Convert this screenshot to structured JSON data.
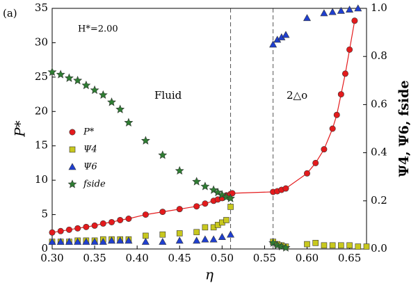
{
  "chart_data": {
    "type": "scatter",
    "panel": "(a)",
    "annotations": [
      "H*=2.00",
      "Fluid",
      "2△o"
    ],
    "xlabel": "η",
    "ylabel": "P*",
    "y2label": "Ψ4, Ψ6, fside",
    "xlim": [
      0.3,
      0.67
    ],
    "ylim": [
      0,
      35
    ],
    "y2lim": [
      0,
      1.0
    ],
    "xticks": [
      {
        "value": 0.3,
        "label": "0.30"
      },
      0.35,
      {
        "value": 0.4,
        "label": "0.40"
      },
      0.45,
      {
        "value": 0.5,
        "label": "0.50"
      },
      0.55,
      {
        "value": 0.6,
        "label": "0.60"
      },
      0.65
    ],
    "yticks": [
      0,
      5,
      10,
      15,
      20,
      25,
      30,
      35
    ],
    "y2ticks": [
      {
        "value": 0,
        "label": "0.0"
      },
      0.2,
      0.4,
      0.6,
      0.8,
      {
        "value": 1,
        "label": "1.0"
      }
    ],
    "vlines": [
      0.51,
      0.56
    ],
    "legend": "center left",
    "series": [
      {
        "name": "P*",
        "color": "#e41a1c",
        "marker": "circle",
        "line": true,
        "axis": "y",
        "x": [
          0.3,
          0.31,
          0.32,
          0.33,
          0.34,
          0.35,
          0.36,
          0.37,
          0.38,
          0.39,
          0.41,
          0.43,
          0.45,
          0.47,
          0.48,
          0.49,
          0.495,
          0.5,
          0.505,
          0.51,
          0.512,
          0.56,
          0.565,
          0.57,
          0.575,
          0.6,
          0.61,
          0.62,
          0.63,
          0.635,
          0.64,
          0.645,
          0.65,
          0.656
        ],
        "values": [
          2.4,
          2.6,
          2.8,
          3.0,
          3.2,
          3.4,
          3.7,
          3.9,
          4.2,
          4.4,
          5.0,
          5.4,
          5.8,
          6.2,
          6.6,
          7.0,
          7.2,
          7.4,
          7.8,
          8.0,
          8.1,
          8.3,
          8.4,
          8.6,
          8.8,
          11.0,
          12.5,
          14.5,
          17.5,
          19.5,
          22.5,
          25.5,
          29.0,
          33.2
        ]
      },
      {
        "name": "Ψ4",
        "color": "#c8c81e",
        "marker": "square",
        "axis": "y2",
        "x": [
          0.3,
          0.31,
          0.32,
          0.33,
          0.34,
          0.35,
          0.36,
          0.37,
          0.38,
          0.39,
          0.41,
          0.43,
          0.45,
          0.47,
          0.48,
          0.49,
          0.495,
          0.5,
          0.505,
          0.51,
          0.56,
          0.565,
          0.57,
          0.575,
          0.6,
          0.61,
          0.62,
          0.63,
          0.64,
          0.65,
          0.66,
          0.67
        ],
        "values": [
          0.03,
          0.03,
          0.03,
          0.035,
          0.035,
          0.035,
          0.04,
          0.04,
          0.04,
          0.04,
          0.055,
          0.06,
          0.065,
          0.07,
          0.09,
          0.09,
          0.1,
          0.11,
          0.12,
          0.175,
          0.03,
          0.02,
          0.015,
          0.01,
          0.02,
          0.025,
          0.015,
          0.015,
          0.015,
          0.015,
          0.01,
          0.01
        ]
      },
      {
        "name": "Ψ6",
        "color": "#1f3fd0",
        "marker": "triangle",
        "axis": "y2",
        "x": [
          0.3,
          0.31,
          0.32,
          0.33,
          0.34,
          0.35,
          0.36,
          0.37,
          0.38,
          0.39,
          0.41,
          0.43,
          0.45,
          0.47,
          0.48,
          0.49,
          0.5,
          0.51,
          0.56,
          0.565,
          0.57,
          0.575,
          0.6,
          0.62,
          0.63,
          0.64,
          0.65,
          0.66
        ],
        "values": [
          0.03,
          0.03,
          0.03,
          0.03,
          0.03,
          0.03,
          0.03,
          0.035,
          0.035,
          0.035,
          0.03,
          0.03,
          0.035,
          0.035,
          0.04,
          0.04,
          0.05,
          0.06,
          0.85,
          0.87,
          0.88,
          0.89,
          0.96,
          0.98,
          0.985,
          0.99,
          0.995,
          1.0
        ]
      },
      {
        "name": "fside",
        "color": "#2e7d32",
        "marker": "star",
        "axis": "y2",
        "x": [
          0.3,
          0.31,
          0.32,
          0.33,
          0.34,
          0.35,
          0.36,
          0.37,
          0.38,
          0.39,
          0.41,
          0.43,
          0.45,
          0.47,
          0.48,
          0.49,
          0.495,
          0.5,
          0.505,
          0.51,
          0.56,
          0.565,
          0.57,
          0.575
        ],
        "values": [
          0.735,
          0.725,
          0.71,
          0.7,
          0.68,
          0.66,
          0.64,
          0.61,
          0.58,
          0.525,
          0.45,
          0.39,
          0.325,
          0.28,
          0.26,
          0.245,
          0.235,
          0.225,
          0.215,
          0.21,
          0.025,
          0.015,
          0.01,
          0.005
        ]
      }
    ]
  }
}
